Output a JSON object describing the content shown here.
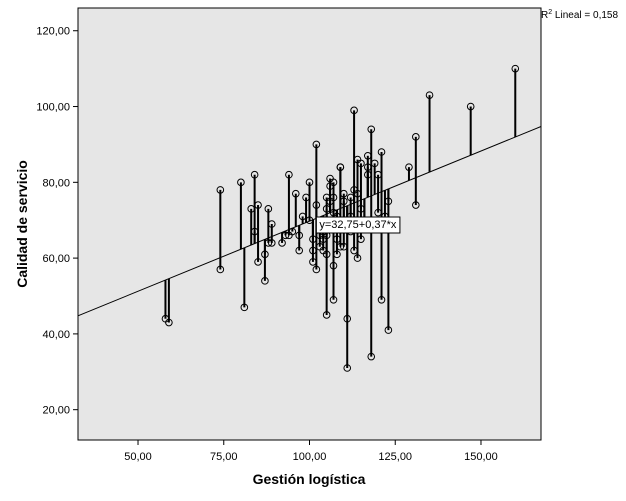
{
  "colors": {
    "plot_bg": "#e6e6e6",
    "marker": "#000000",
    "line": "#000000",
    "page_bg": "#ffffff"
  },
  "chart_data": {
    "type": "scatter",
    "xlabel": "Gestión logística",
    "ylabel": "Calidad de servicio",
    "xlim": [
      32.5,
      167.5
    ],
    "ylim": [
      12,
      126
    ],
    "x_ticks": [
      50,
      75,
      100,
      125,
      150
    ],
    "x_tick_labels": [
      "50,00",
      "75,00",
      "100,00",
      "125,00",
      "150,00"
    ],
    "y_ticks": [
      20,
      40,
      60,
      80,
      100,
      120
    ],
    "y_tick_labels": [
      "20,00",
      "40,00",
      "60,00",
      "80,00",
      "100,00",
      "120,00"
    ],
    "grid": false,
    "r2_label": {
      "prefix": "R",
      "sup": "2",
      "text": " Lineal = 0,158"
    },
    "fit": {
      "intercept": 32.75,
      "slope": 0.37,
      "label": "y=32,75+0,37*x",
      "label_at": [
        102,
        69
      ]
    },
    "residual_lines": true,
    "points": [
      [
        58,
        44
      ],
      [
        59,
        43
      ],
      [
        74,
        57
      ],
      [
        74,
        78
      ],
      [
        80,
        80
      ],
      [
        81,
        47
      ],
      [
        83,
        73
      ],
      [
        84,
        82
      ],
      [
        84,
        67
      ],
      [
        85,
        74
      ],
      [
        85,
        59
      ],
      [
        87,
        54
      ],
      [
        87,
        61
      ],
      [
        88,
        73
      ],
      [
        88,
        64
      ],
      [
        89,
        64
      ],
      [
        89,
        69
      ],
      [
        92,
        64
      ],
      [
        93,
        66
      ],
      [
        94,
        82
      ],
      [
        94,
        66
      ],
      [
        95,
        67
      ],
      [
        96,
        77
      ],
      [
        97,
        66
      ],
      [
        97,
        62
      ],
      [
        98,
        71
      ],
      [
        99,
        76
      ],
      [
        100,
        80
      ],
      [
        100,
        70
      ],
      [
        101,
        65
      ],
      [
        101,
        62
      ],
      [
        101,
        59
      ],
      [
        102,
        90
      ],
      [
        102,
        57
      ],
      [
        102,
        74
      ],
      [
        103,
        66
      ],
      [
        103,
        63
      ],
      [
        104,
        65
      ],
      [
        104,
        67
      ],
      [
        104,
        62
      ],
      [
        105,
        76
      ],
      [
        105,
        73
      ],
      [
        105,
        66
      ],
      [
        105,
        61
      ],
      [
        105,
        45
      ],
      [
        106,
        81
      ],
      [
        106,
        79
      ],
      [
        106,
        75
      ],
      [
        107,
        80
      ],
      [
        107,
        76
      ],
      [
        107,
        72
      ],
      [
        107,
        58
      ],
      [
        107,
        49
      ],
      [
        108,
        71
      ],
      [
        108,
        68
      ],
      [
        108,
        61
      ],
      [
        108,
        65
      ],
      [
        109,
        84
      ],
      [
        109,
        84
      ],
      [
        109,
        63
      ],
      [
        110,
        77
      ],
      [
        110,
        75
      ],
      [
        110,
        68
      ],
      [
        110,
        63
      ],
      [
        111,
        31
      ],
      [
        111,
        44
      ],
      [
        111,
        70
      ],
      [
        112,
        76
      ],
      [
        112,
        67
      ],
      [
        112,
        71
      ],
      [
        113,
        99
      ],
      [
        113,
        78
      ],
      [
        113,
        62
      ],
      [
        114,
        86
      ],
      [
        114,
        77
      ],
      [
        114,
        60
      ],
      [
        115,
        85
      ],
      [
        115,
        73
      ],
      [
        115,
        65
      ],
      [
        116,
        68
      ],
      [
        116,
        70
      ],
      [
        117,
        87
      ],
      [
        117,
        84
      ],
      [
        117,
        82
      ],
      [
        118,
        94
      ],
      [
        118,
        34
      ],
      [
        119,
        85
      ],
      [
        120,
        82
      ],
      [
        120,
        72
      ],
      [
        121,
        88
      ],
      [
        121,
        49
      ],
      [
        122,
        71
      ],
      [
        123,
        75
      ],
      [
        123,
        41
      ],
      [
        129,
        84
      ],
      [
        131,
        92
      ],
      [
        131,
        74
      ],
      [
        135,
        103
      ],
      [
        147,
        100
      ],
      [
        160,
        110
      ]
    ]
  }
}
